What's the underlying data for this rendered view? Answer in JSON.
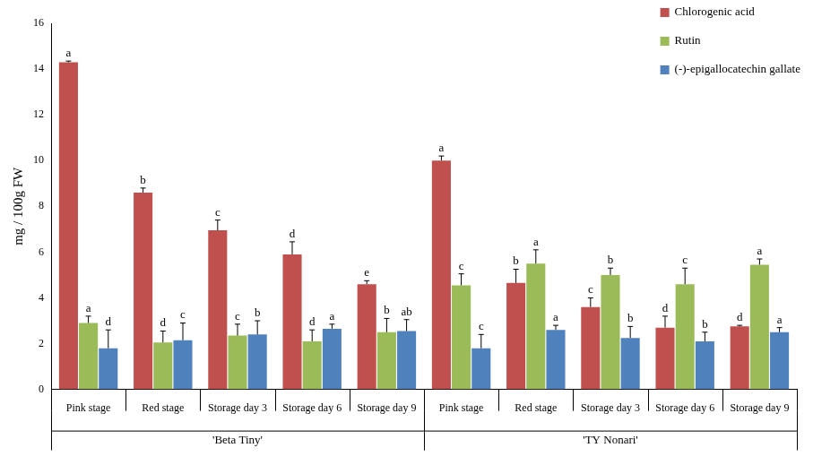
{
  "chart_data": {
    "type": "bar",
    "categories": [
      "Pink stage",
      "Red stage",
      "Storage day 3",
      "Storage day 6",
      "Storage day 9",
      "Pink stage",
      "Red stage",
      "Storage day 3",
      "Storage day 6",
      "Storage day 9"
    ],
    "category_groups": [
      "'Beta Tiny'",
      "'Beta Tiny'",
      "'Beta Tiny'",
      "'Beta Tiny'",
      "'Beta Tiny'",
      "'TY Nonari'",
      "'TY Nonari'",
      "'TY Nonari'",
      "'TY Nonari'",
      "'TY Nonari'"
    ],
    "y_label": "mg / 100g FW",
    "ylim": [
      0,
      16
    ],
    "yticks": [
      0,
      2,
      4,
      6,
      8,
      10,
      12,
      14,
      16
    ],
    "grid": false,
    "legend": "upper right",
    "series": [
      {
        "name": "Chlorogenic acid",
        "color": "#C0504D",
        "values": [
          14.3,
          8.6,
          6.95,
          5.9,
          4.6,
          10.0,
          4.65,
          3.6,
          2.7,
          2.75
        ],
        "errors": [
          0.05,
          0.2,
          0.45,
          0.55,
          0.15,
          0.2,
          0.6,
          0.4,
          0.5,
          0.05
        ],
        "letters": [
          "a",
          "b",
          "c",
          "d",
          "e",
          "a",
          "b",
          "c",
          "d",
          "d"
        ]
      },
      {
        "name": "Rutin",
        "color": "#9BBB59",
        "values": [
          2.9,
          2.05,
          2.35,
          2.1,
          2.5,
          4.55,
          5.5,
          5.0,
          4.6,
          5.45
        ],
        "errors": [
          0.3,
          0.5,
          0.5,
          0.5,
          0.6,
          0.5,
          0.6,
          0.3,
          0.7,
          0.25
        ],
        "letters": [
          "a",
          "d",
          "c",
          "d",
          "b",
          "c",
          "a",
          "b",
          "c",
          "a"
        ]
      },
      {
        "name": "(-)-epigallocatechin gallate",
        "color": "#4F81BD",
        "values": [
          1.8,
          2.15,
          2.4,
          2.65,
          2.55,
          1.8,
          2.6,
          2.25,
          2.1,
          2.5
        ],
        "errors": [
          0.8,
          0.75,
          0.6,
          0.2,
          0.5,
          0.6,
          0.2,
          0.5,
          0.4,
          0.2
        ],
        "letters": [
          "d",
          "c",
          "b",
          "a",
          "ab",
          "c",
          "a",
          "b",
          "b",
          "a"
        ]
      }
    ]
  }
}
